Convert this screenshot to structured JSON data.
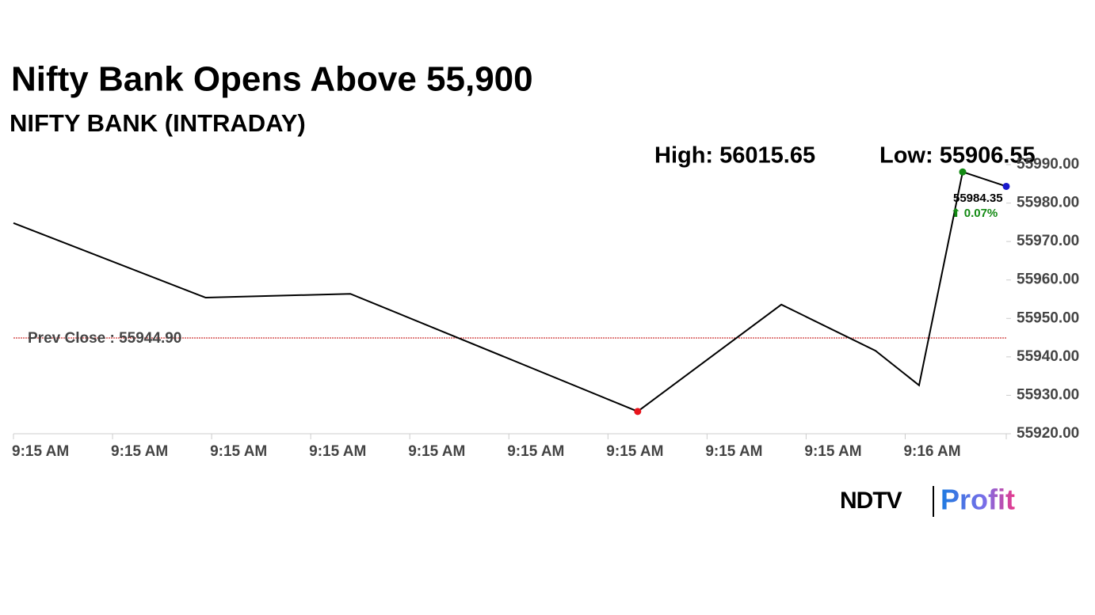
{
  "chart_data": {
    "type": "line",
    "title": "Nifty Bank Opens Above 55,900",
    "subtitle": "NIFTY BANK (INTRADAY)",
    "high_label": "High: 56015.65",
    "low_label": "Low: 55906.55",
    "reference": {
      "label": "Prev Close : 55944.90",
      "value": 55944.9,
      "color": "#c00000"
    },
    "last_label": "55984.35",
    "change_label": "⬆ 0.07%",
    "change_color": "#138a13",
    "x": [
      0,
      1.94,
      3.4,
      6.3,
      7.75,
      8.7,
      9.14,
      9.58,
      10.02
    ],
    "values": [
      55974.8,
      55955.4,
      55956.4,
      55925.8,
      55953.6,
      55941.6,
      55932.6,
      55988.1,
      55984.35
    ],
    "color": "#000000",
    "high_color": "#138a13",
    "low_color": "#e8141c",
    "last_color": "#1a1acc",
    "xlim": [
      0,
      10.02
    ],
    "xticks": [
      {
        "value": 0,
        "label": "9:15 AM"
      },
      {
        "value": 1,
        "label": "9:15 AM"
      },
      {
        "value": 2,
        "label": "9:15 AM"
      },
      {
        "value": 3,
        "label": "9:15 AM"
      },
      {
        "value": 4,
        "label": "9:15 AM"
      },
      {
        "value": 5,
        "label": "9:15 AM"
      },
      {
        "value": 6,
        "label": "9:15 AM"
      },
      {
        "value": 7,
        "label": "9:15 AM"
      },
      {
        "value": 8,
        "label": "9:15 AM"
      },
      {
        "value": 9,
        "label": "9:16 AM"
      }
    ],
    "ylim": [
      55920,
      55990
    ],
    "yticks": [
      {
        "value": 55920,
        "label": "55920.00"
      },
      {
        "value": 55930,
        "label": "55930.00"
      },
      {
        "value": 55940,
        "label": "55940.00"
      },
      {
        "value": 55950,
        "label": "55950.00"
      },
      {
        "value": 55960,
        "label": "55960.00"
      },
      {
        "value": 55970,
        "label": "55970.00"
      },
      {
        "value": 55980,
        "label": "55980.00"
      },
      {
        "value": 55990,
        "label": "55990.00"
      }
    ],
    "brand": {
      "left": "NDTV",
      "right": "Profit"
    }
  }
}
